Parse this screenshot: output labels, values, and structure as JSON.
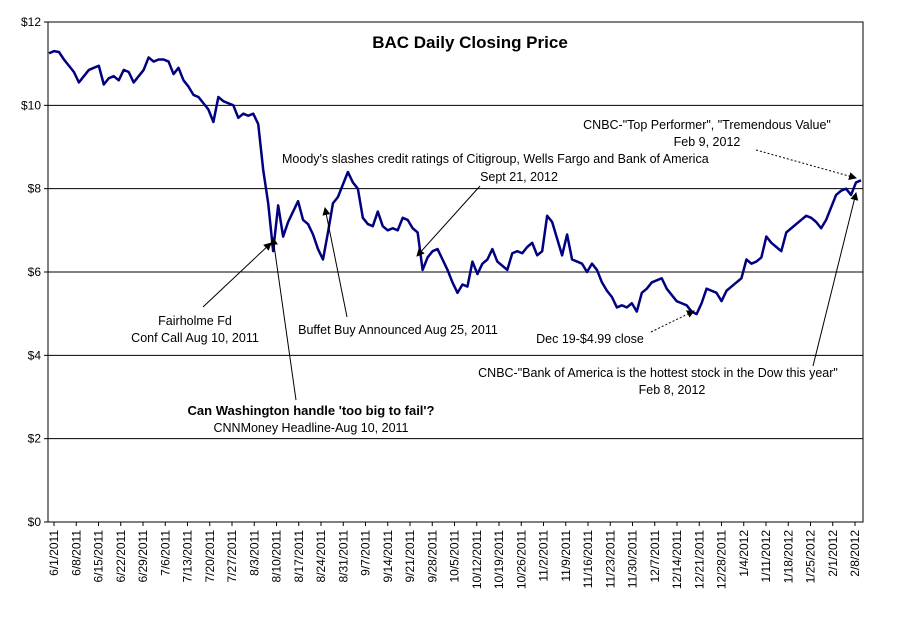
{
  "chart_data": {
    "type": "line",
    "title": "BAC Daily Closing Price",
    "xlabel": "",
    "ylabel": "",
    "ylim": [
      0,
      12
    ],
    "grid": true,
    "legend": "none",
    "line_color": "#000080",
    "y_ticks": [
      "$0",
      "$2",
      "$4",
      "$6",
      "$8",
      "$10",
      "$12"
    ],
    "x_ticks": [
      "6/1/2011",
      "6/8/2011",
      "6/15/2011",
      "6/22/2011",
      "6/29/2011",
      "7/6/2011",
      "7/13/2011",
      "7/20/2011",
      "7/27/2011",
      "8/3/2011",
      "8/10/2011",
      "8/17/2011",
      "8/24/2011",
      "8/31/2011",
      "9/7/2011",
      "9/14/2011",
      "9/21/2011",
      "9/28/2011",
      "10/5/2011",
      "10/12/2011",
      "10/19/2011",
      "10/26/2011",
      "11/2/2011",
      "11/9/2011",
      "11/16/2011",
      "11/23/2011",
      "11/30/2011",
      "12/7/2011",
      "12/14/2011",
      "12/21/2011",
      "12/28/2011",
      "1/4/2012",
      "1/11/2012",
      "1/18/2012",
      "1/25/2012",
      "2/1/2012",
      "2/8/2012"
    ],
    "series": [
      {
        "values": [
          11.25,
          11.3,
          11.28,
          11.1,
          10.95,
          10.8,
          10.55,
          10.7,
          10.85,
          10.9,
          10.95,
          10.5,
          10.65,
          10.7,
          10.6,
          10.85,
          10.8,
          10.55,
          10.7,
          10.85,
          11.15,
          11.05,
          11.1,
          11.1,
          11.05,
          10.75,
          10.9,
          10.6,
          10.45,
          10.25,
          10.2,
          10.05,
          9.9,
          9.6,
          10.2,
          10.1,
          10.05,
          10.0,
          9.7,
          9.8,
          9.75,
          9.8,
          9.55,
          8.45,
          7.65,
          6.5,
          7.6,
          6.85,
          7.2,
          7.45,
          7.7,
          7.25,
          7.15,
          6.9,
          6.55,
          6.3,
          6.95,
          7.65,
          7.8,
          8.1,
          8.4,
          8.15,
          8.0,
          7.3,
          7.15,
          7.1,
          7.45,
          7.1,
          7.0,
          7.05,
          7.0,
          7.3,
          7.25,
          7.05,
          6.95,
          6.05,
          6.35,
          6.5,
          6.55,
          6.3,
          6.05,
          5.75,
          5.5,
          5.7,
          5.65,
          6.25,
          5.95,
          6.2,
          6.3,
          6.55,
          6.25,
          6.15,
          6.05,
          6.45,
          6.5,
          6.45,
          6.6,
          6.7,
          6.4,
          6.5,
          7.35,
          7.2,
          6.8,
          6.4,
          6.9,
          6.3,
          6.25,
          6.2,
          6.0,
          6.2,
          6.05,
          5.75,
          5.55,
          5.4,
          5.15,
          5.2,
          5.15,
          5.25,
          5.05,
          5.5,
          5.6,
          5.75,
          5.8,
          5.85,
          5.6,
          5.45,
          5.3,
          5.25,
          5.2,
          5.05,
          4.99,
          5.25,
          5.6,
          5.55,
          5.5,
          5.3,
          5.55,
          5.65,
          5.75,
          5.85,
          6.3,
          6.2,
          6.25,
          6.35,
          6.85,
          6.7,
          6.6,
          6.5,
          6.95,
          7.05,
          7.15,
          7.25,
          7.35,
          7.3,
          7.2,
          7.05,
          7.25,
          7.55,
          7.85,
          7.95,
          8.0,
          7.85,
          8.15,
          8.2
        ]
      }
    ],
    "annotations": [
      {
        "lines": [
          "CNBC-\"Top Performer\", \"Tremendous Value\"",
          "Feb 9, 2012"
        ]
      },
      {
        "lines": [
          "Moody's slashes credit ratings of Citigroup, Wells Fargo and Bank of America",
          "Sept 21, 2012"
        ]
      },
      {
        "lines": [
          "Fairholme Fd",
          "Conf Call Aug 10, 2011"
        ]
      },
      {
        "lines": [
          "Buffet Buy Announced Aug 25, 2011"
        ]
      },
      {
        "lines": [
          "Dec 19-$4.99 close"
        ]
      },
      {
        "lines": [
          "CNBC-\"Bank of America is the hottest stock in the Dow this year\"",
          "Feb 8, 2012"
        ]
      },
      {
        "lines": [
          "Can Washington handle 'too big to fail'?",
          "CNNMoney Headline-Aug 10, 2011"
        ]
      }
    ]
  }
}
